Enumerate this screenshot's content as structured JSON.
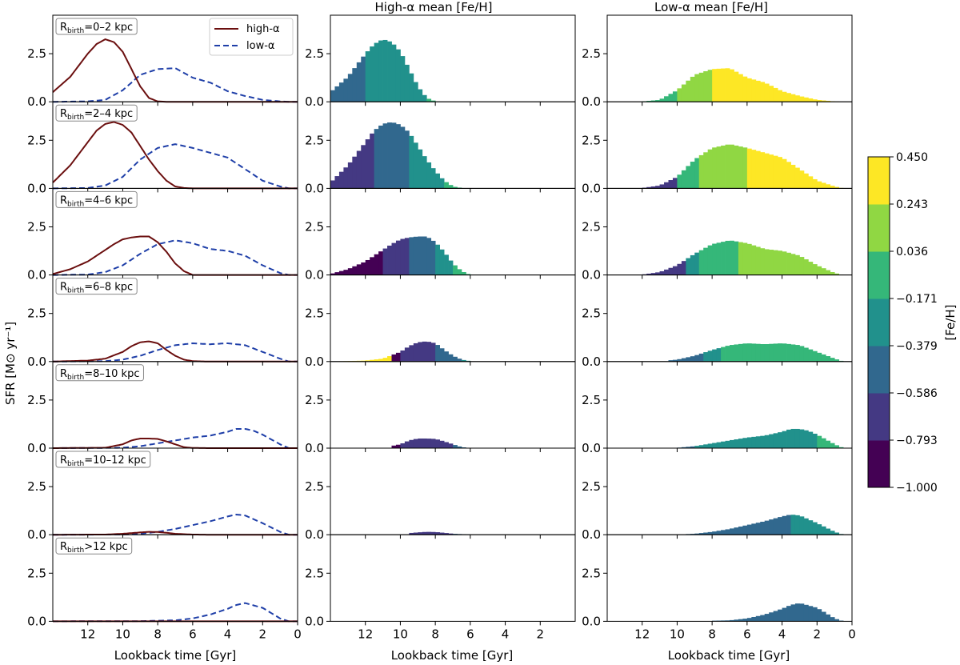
{
  "chart_data": {
    "type": "step-histogram-grid",
    "xlabel": "Lookback time [Gyr]",
    "ylabel": "SFR [M⊙ yr⁻¹]",
    "xlim": [
      14,
      0
    ],
    "ylim": [
      0,
      4.5
    ],
    "x_ticks": [
      12,
      10,
      8,
      6,
      4,
      2,
      0
    ],
    "x_tick_labels_col0": [
      "12",
      "10",
      "8",
      "6",
      "4",
      "2",
      "0"
    ],
    "x_tick_labels_col1": [
      "12",
      "10",
      "8",
      "6",
      "4",
      "2"
    ],
    "x_tick_labels_col2": [
      "12",
      "10",
      "8",
      "6",
      "4",
      "2",
      "0"
    ],
    "y_ticks": [
      0.0,
      2.5
    ],
    "y_tick_labels": [
      "0.0",
      "2.5"
    ],
    "column_titles": [
      "",
      "High-α mean [Fe/H]",
      "Low-α mean [Fe/H]"
    ],
    "legend": [
      {
        "label": "high-α",
        "color": "#6b0f0f",
        "style": "solid"
      },
      {
        "label": "low-α",
        "color": "#1f3fa8",
        "style": "dashed"
      }
    ],
    "colorbar": {
      "label": "[Fe/H]",
      "range": [
        -1.0,
        0.45
      ],
      "tick_labels": [
        "0.450",
        "0.243",
        "0.036",
        "−0.171",
        "−0.379",
        "−0.586",
        "−0.793",
        "−1.000"
      ],
      "bins": [
        {
          "color": "#440154",
          "range": [
            -1.0,
            -0.793
          ]
        },
        {
          "color": "#443983",
          "range": [
            -0.793,
            -0.586
          ]
        },
        {
          "color": "#31688e",
          "range": [
            -0.586,
            -0.379
          ]
        },
        {
          "color": "#21918c",
          "range": [
            -0.379,
            -0.171
          ]
        },
        {
          "color": "#35b779",
          "range": [
            -0.171,
            0.036
          ]
        },
        {
          "color": "#90d743",
          "range": [
            0.036,
            0.243
          ]
        },
        {
          "color": "#fde725",
          "range": [
            0.243,
            0.45
          ]
        }
      ]
    },
    "rows": [
      {
        "label_main": "R",
        "label_sub": "birth",
        "label_rest": "=0–2 kpc",
        "high_alpha": {
          "t": [
            14,
            13,
            12,
            11.5,
            11,
            10.5,
            10,
            9.5,
            9,
            8.5,
            8,
            7.5
          ],
          "sfr": [
            0.5,
            1.3,
            2.5,
            3.0,
            3.25,
            3.1,
            2.6,
            1.7,
            0.8,
            0.2,
            0.02,
            0
          ]
        },
        "low_alpha": {
          "t": [
            14,
            12,
            11,
            10,
            9,
            8,
            7,
            6,
            5,
            4,
            3,
            2,
            1,
            0.5,
            0
          ],
          "sfr": [
            0,
            0.02,
            0.1,
            0.6,
            1.4,
            1.7,
            1.75,
            1.25,
            1.0,
            0.55,
            0.3,
            0.1,
            0.02,
            0,
            0
          ]
        },
        "high_bins": [
          {
            "from": 14,
            "to": 12,
            "color": "#31688e"
          },
          {
            "from": 12,
            "to": 8.5,
            "color": "#21918c"
          },
          {
            "from": 8.5,
            "to": 7.5,
            "color": "#35b779"
          }
        ],
        "low_bins": [
          {
            "from": 12,
            "to": 10,
            "color": "#35b779"
          },
          {
            "from": 10,
            "to": 8,
            "color": "#90d743"
          },
          {
            "from": 8,
            "to": 0,
            "color": "#fde725"
          }
        ]
      },
      {
        "label_main": "R",
        "label_sub": "birth",
        "label_rest": "=2–4 kpc",
        "high_alpha": {
          "t": [
            14,
            13,
            12,
            11.5,
            11,
            10.5,
            10,
            9.5,
            9,
            8.5,
            8,
            7.5,
            7,
            6.5,
            6
          ],
          "sfr": [
            0.3,
            1.2,
            2.4,
            3.0,
            3.35,
            3.45,
            3.3,
            2.9,
            2.2,
            1.5,
            0.9,
            0.4,
            0.1,
            0.02,
            0
          ]
        },
        "low_alpha": {
          "t": [
            14,
            12,
            11,
            10,
            9,
            8,
            7,
            6,
            5,
            4,
            3,
            2,
            1,
            0.5,
            0
          ],
          "sfr": [
            0,
            0.02,
            0.15,
            0.6,
            1.5,
            2.1,
            2.3,
            2.1,
            1.85,
            1.6,
            1.0,
            0.4,
            0.1,
            0,
            0
          ]
        },
        "high_bins": [
          {
            "from": 14,
            "to": 11.5,
            "color": "#443983"
          },
          {
            "from": 11.5,
            "to": 9.5,
            "color": "#31688e"
          },
          {
            "from": 9.5,
            "to": 7.5,
            "color": "#21918c"
          },
          {
            "from": 7.5,
            "to": 6.5,
            "color": "#35b779"
          },
          {
            "from": 6.5,
            "to": 6,
            "color": "#90d743"
          }
        ],
        "low_bins": [
          {
            "from": 12,
            "to": 10,
            "color": "#443983"
          },
          {
            "from": 10,
            "to": 8.8,
            "color": "#35b779"
          },
          {
            "from": 8.8,
            "to": 5.9,
            "color": "#90d743"
          },
          {
            "from": 5.9,
            "to": 0,
            "color": "#fde725"
          }
        ]
      },
      {
        "label_main": "R",
        "label_sub": "birth",
        "label_rest": "=4–6 kpc",
        "high_alpha": {
          "t": [
            14,
            13,
            12,
            11,
            10.5,
            10,
            9.5,
            9,
            8.5,
            8,
            7.5,
            7,
            6.5,
            6
          ],
          "sfr": [
            0.05,
            0.3,
            0.7,
            1.3,
            1.6,
            1.85,
            1.95,
            2.0,
            2.0,
            1.7,
            1.2,
            0.6,
            0.2,
            0
          ]
        },
        "low_alpha": {
          "t": [
            14,
            12,
            11,
            10,
            9,
            8,
            7,
            6,
            5,
            4,
            3,
            2,
            1,
            0.5,
            0
          ],
          "sfr": [
            0,
            0.02,
            0.15,
            0.5,
            1.1,
            1.6,
            1.8,
            1.65,
            1.35,
            1.25,
            1.0,
            0.5,
            0.1,
            0,
            0
          ]
        },
        "high_bins": [
          {
            "from": 14,
            "to": 11,
            "color": "#440154"
          },
          {
            "from": 11,
            "to": 9.5,
            "color": "#443983"
          },
          {
            "from": 9.5,
            "to": 8,
            "color": "#31688e"
          },
          {
            "from": 8,
            "to": 7,
            "color": "#21918c"
          },
          {
            "from": 7,
            "to": 6,
            "color": "#35b779"
          }
        ],
        "low_bins": [
          {
            "from": 12,
            "to": 9.5,
            "color": "#443983"
          },
          {
            "from": 9.5,
            "to": 8.7,
            "color": "#21918c"
          },
          {
            "from": 8.7,
            "to": 6.5,
            "color": "#35b779"
          },
          {
            "from": 6.5,
            "to": 0,
            "color": "#90d743"
          }
        ]
      },
      {
        "label_main": "R",
        "label_sub": "birth",
        "label_rest": "=6–8 kpc",
        "high_alpha": {
          "t": [
            14,
            12,
            11,
            10,
            9.5,
            9,
            8.5,
            8,
            7.5,
            7,
            6.5,
            6,
            5
          ],
          "sfr": [
            0,
            0.05,
            0.15,
            0.5,
            0.8,
            1.0,
            1.05,
            0.95,
            0.6,
            0.3,
            0.1,
            0.02,
            0
          ]
        },
        "low_alpha": {
          "t": [
            14,
            11,
            10,
            9,
            8,
            7,
            6,
            5,
            4,
            3,
            2,
            1,
            0.5,
            0
          ],
          "sfr": [
            0,
            0.02,
            0.1,
            0.3,
            0.6,
            0.85,
            0.95,
            0.9,
            0.95,
            0.85,
            0.5,
            0.15,
            0,
            0
          ]
        },
        "high_bins": [
          {
            "from": 14,
            "to": 10.5,
            "color": "#fde725"
          },
          {
            "from": 10.5,
            "to": 10,
            "color": "#440154"
          },
          {
            "from": 10,
            "to": 8,
            "color": "#443983"
          },
          {
            "from": 8,
            "to": 6.5,
            "color": "#31688e"
          },
          {
            "from": 6.5,
            "to": 6,
            "color": "#21918c"
          }
        ],
        "low_bins": [
          {
            "from": 10.5,
            "to": 8.5,
            "color": "#31688e"
          },
          {
            "from": 8.5,
            "to": 7.6,
            "color": "#21918c"
          },
          {
            "from": 7.6,
            "to": 0,
            "color": "#35b779"
          }
        ]
      },
      {
        "label_main": "R",
        "label_sub": "birth",
        "label_rest": "=8–10 kpc",
        "high_alpha": {
          "t": [
            14,
            11,
            10,
            9.5,
            9,
            8.5,
            8,
            7.5,
            7,
            6.5,
            6,
            5
          ],
          "sfr": [
            0,
            0.02,
            0.2,
            0.4,
            0.5,
            0.5,
            0.48,
            0.35,
            0.2,
            0.05,
            0.01,
            0
          ]
        },
        "low_alpha": {
          "t": [
            14,
            10,
            9,
            8,
            7,
            6,
            5,
            4,
            3.5,
            3,
            2.5,
            2,
            1,
            0.5,
            0
          ],
          "sfr": [
            0,
            0.02,
            0.1,
            0.25,
            0.4,
            0.55,
            0.65,
            0.85,
            1.0,
            1.0,
            0.9,
            0.7,
            0.2,
            0,
            0
          ]
        },
        "high_bins": [
          {
            "from": 10.5,
            "to": 10,
            "color": "#440154"
          },
          {
            "from": 10,
            "to": 7,
            "color": "#443983"
          },
          {
            "from": 7,
            "to": 6,
            "color": "#31688e"
          }
        ],
        "low_bins": [
          {
            "from": 10.5,
            "to": 9,
            "color": "#31688e"
          },
          {
            "from": 9,
            "to": 2,
            "color": "#21918c"
          },
          {
            "from": 2,
            "to": 0,
            "color": "#35b779"
          }
        ]
      },
      {
        "label_main": "R",
        "label_sub": "birth",
        "label_rest": "=10–12 kpc",
        "high_alpha": {
          "t": [
            14,
            11,
            10,
            9,
            8.5,
            8,
            7.5,
            7,
            6,
            5
          ],
          "sfr": [
            0,
            0.01,
            0.05,
            0.12,
            0.15,
            0.14,
            0.1,
            0.05,
            0.01,
            0
          ]
        },
        "low_alpha": {
          "t": [
            14,
            10,
            9,
            8,
            7,
            6,
            5,
            4,
            3.5,
            3,
            2,
            1,
            0.5,
            0
          ],
          "sfr": [
            0,
            0.01,
            0.05,
            0.15,
            0.3,
            0.5,
            0.7,
            0.95,
            1.05,
            1.0,
            0.6,
            0.15,
            0,
            0
          ]
        },
        "high_bins": [
          {
            "from": 9.5,
            "to": 7,
            "color": "#443983"
          },
          {
            "from": 7,
            "to": 6,
            "color": "#31688e"
          }
        ],
        "low_bins": [
          {
            "from": 9.5,
            "to": 3.5,
            "color": "#31688e"
          },
          {
            "from": 3.5,
            "to": 0,
            "color": "#21918c"
          }
        ]
      },
      {
        "label_main": "R",
        "label_sub": "birth",
        "label_rest": ">12 kpc",
        "high_alpha": {
          "t": [
            14,
            0
          ],
          "sfr": [
            0,
            0
          ]
        },
        "low_alpha": {
          "t": [
            14,
            9,
            7,
            6,
            5,
            4,
            3.5,
            3,
            2,
            1,
            0.5,
            0
          ],
          "sfr": [
            0,
            0.01,
            0.05,
            0.15,
            0.35,
            0.65,
            0.85,
            0.95,
            0.7,
            0.15,
            0,
            0
          ]
        },
        "high_bins": [],
        "low_bins": [
          {
            "from": 8,
            "to": 0,
            "color": "#31688e"
          }
        ]
      }
    ]
  }
}
